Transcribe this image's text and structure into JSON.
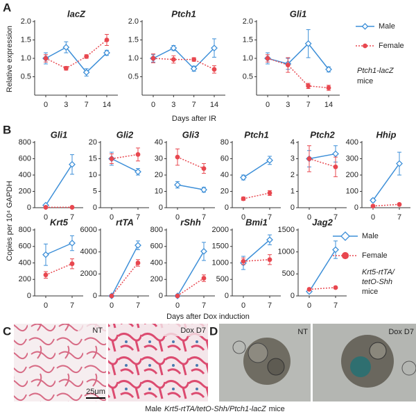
{
  "panel_labels": [
    "A",
    "B",
    "C",
    "D"
  ],
  "chart_data": [
    {
      "type": "line",
      "ylabel": "Relative expression",
      "xlabel": "Days after IR",
      "categories": [
        "0",
        "3",
        "7",
        "14"
      ],
      "ylim": [
        0,
        2
      ],
      "yticks": [
        0.5,
        {
          "value": 1,
          "label": "1.0"
        },
        1.5,
        {
          "value": 2,
          "label": "2.0"
        }
      ],
      "legend": [
        {
          "name": "Male",
          "color": "#3d8fd8",
          "marker": "diamond",
          "dash": "solid"
        },
        {
          "name": "Female",
          "color": "#e8474f",
          "marker": "circle",
          "dash": "dotted"
        }
      ],
      "note": [
        "Ptch1-lacZ",
        "mice"
      ],
      "plots": [
        {
          "title": "lacZ",
          "series": [
            {
              "values": [
                1.0,
                1.3,
                0.62,
                1.15
              ],
              "errors": [
                0.15,
                0.15,
                0.1,
                0.07
              ]
            },
            {
              "values": [
                1.0,
                0.73,
                1.05,
                1.5
              ],
              "errors": [
                0.1,
                0.05,
                0.05,
                0.15
              ]
            }
          ]
        },
        {
          "title": "Ptch1",
          "series": [
            {
              "values": [
                1.0,
                1.28,
                0.72,
                1.28
              ],
              "errors": [
                0.1,
                0.07,
                0.07,
                0.25
              ]
            },
            {
              "values": [
                1.0,
                0.97,
                0.97,
                0.7
              ],
              "errors": [
                0.12,
                0.1,
                0.05,
                0.1
              ]
            }
          ]
        },
        {
          "title": "Gli1",
          "series": [
            {
              "values": [
                1.0,
                0.85,
                1.4,
                0.7
              ],
              "errors": [
                0.15,
                0.15,
                0.38,
                0.07
              ]
            },
            {
              "values": [
                1.0,
                0.82,
                0.25,
                0.2
              ],
              "errors": [
                0.1,
                0.2,
                0.07,
                0.07
              ]
            }
          ]
        }
      ]
    },
    {
      "type": "line",
      "ylabel": "Copies per 10⁴ GAPDH",
      "xlabel": "Days after Dox induction",
      "categories": [
        "0",
        "7"
      ],
      "legend": [
        {
          "name": "Male",
          "color": "#3d8fd8",
          "marker": "diamond",
          "dash": "solid"
        },
        {
          "name": "Female",
          "color": "#e8474f",
          "marker": "circle",
          "dash": "dotted"
        }
      ],
      "note": [
        "Krt5-rtTA/",
        "tetO-Shh",
        "mice"
      ],
      "plots": [
        {
          "title": "Gli1",
          "ylim": [
            0,
            800
          ],
          "yticks": [
            0,
            200,
            400,
            600,
            800
          ],
          "series": [
            {
              "values": [
                30,
                530
              ],
              "errors": [
                10,
                120
              ]
            },
            {
              "values": [
                5,
                5
              ],
              "errors": [
                2,
                2
              ]
            }
          ]
        },
        {
          "title": "Gli2",
          "ylim": [
            0,
            20
          ],
          "yticks": [
            0,
            5,
            10,
            15,
            20
          ],
          "series": [
            {
              "values": [
                15,
                11
              ],
              "errors": [
                2,
                1
              ]
            },
            {
              "values": [
                15,
                16.3
              ],
              "errors": [
                1.5,
                2
              ]
            }
          ]
        },
        {
          "title": "Gli3",
          "ylim": [
            0,
            40
          ],
          "yticks": [
            0,
            10,
            20,
            30,
            40
          ],
          "series": [
            {
              "values": [
                14,
                11
              ],
              "errors": [
                2,
                1.5
              ]
            },
            {
              "values": [
                31,
                24
              ],
              "errors": [
                5,
                3
              ]
            }
          ]
        },
        {
          "title": "Ptch1",
          "ylim": [
            0,
            80
          ],
          "yticks": [
            0,
            20,
            40,
            60,
            80
          ],
          "series": [
            {
              "values": [
                37,
                58
              ],
              "errors": [
                3,
                5
              ]
            },
            {
              "values": [
                11,
                18
              ],
              "errors": [
                2,
                3
              ]
            }
          ]
        },
        {
          "title": "Ptch2",
          "ylim": [
            0,
            4
          ],
          "yticks": [
            0,
            1,
            2,
            3,
            4
          ],
          "series": [
            {
              "values": [
                3.0,
                3.3
              ],
              "errors": [
                0.5,
                0.5
              ]
            },
            {
              "values": [
                3.0,
                2.5
              ],
              "errors": [
                0.8,
                0.6
              ]
            }
          ]
        },
        {
          "title": "Hhip",
          "ylim": [
            0,
            400
          ],
          "yticks": [
            0,
            100,
            200,
            300,
            400
          ],
          "series": [
            {
              "values": [
                45,
                270
              ],
              "errors": [
                10,
                70
              ]
            },
            {
              "values": [
                10,
                20
              ],
              "errors": [
                5,
                5
              ]
            }
          ]
        },
        {
          "title": "Krt5",
          "ylim": [
            0,
            800
          ],
          "yticks": [
            0,
            200,
            400,
            600,
            800
          ],
          "series": [
            {
              "values": [
                500,
                640
              ],
              "errors": [
                130,
                90
              ]
            },
            {
              "values": [
                255,
                390
              ],
              "errors": [
                40,
                60
              ]
            }
          ]
        },
        {
          "title": "rtTA",
          "ylim": [
            0,
            6000
          ],
          "yticks": [
            0,
            2000,
            4000,
            6000
          ],
          "series": [
            {
              "values": [
                0,
                4600
              ],
              "errors": [
                0,
                400
              ]
            },
            {
              "values": [
                0,
                3000
              ],
              "errors": [
                0,
                300
              ]
            }
          ]
        },
        {
          "title": "rShh",
          "ylim": [
            0,
            800
          ],
          "yticks": [
            0,
            200,
            400,
            600,
            800
          ],
          "series": [
            {
              "values": [
                0,
                540
              ],
              "errors": [
                0,
                110
              ]
            },
            {
              "values": [
                0,
                215
              ],
              "errors": [
                0,
                40
              ]
            }
          ]
        },
        {
          "title": "Bmi1",
          "ylim": [
            0,
            2000
          ],
          "yticks": [
            0,
            500,
            1000,
            1500,
            2000
          ],
          "series": [
            {
              "values": [
                1000,
                1700
              ],
              "errors": [
                200,
                150
              ]
            },
            {
              "values": [
                1050,
                1100
              ],
              "errors": [
                100,
                150
              ]
            }
          ]
        },
        {
          "title": "Jag2",
          "ylim": [
            0,
            1500
          ],
          "yticks": [
            0,
            500,
            1000,
            1500
          ],
          "series": [
            {
              "values": [
                100,
                1050
              ],
              "errors": [
                30,
                200
              ]
            },
            {
              "values": [
                150,
                190
              ],
              "errors": [
                20,
                20
              ]
            }
          ]
        }
      ]
    }
  ],
  "images": {
    "c_left": "NT",
    "c_right": "Dox D7",
    "scale_bar": "25μm",
    "d_left": "NT",
    "d_right": "Dox D7",
    "caption": [
      "Male",
      "Krt5-rtTA/tetO-Shh/Ptch1-lacZ",
      "mice"
    ]
  }
}
